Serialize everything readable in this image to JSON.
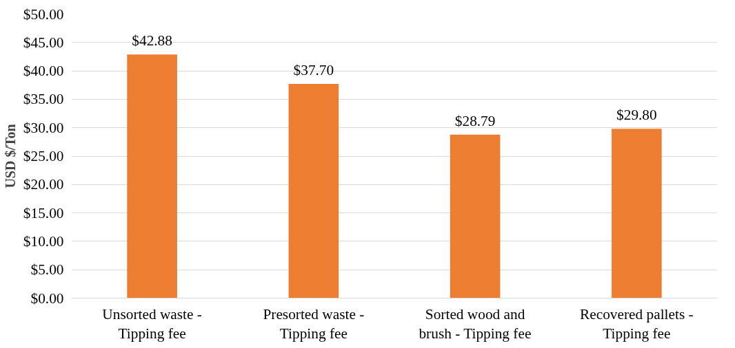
{
  "chart_data": {
    "type": "bar",
    "ylabel": "USD $/Ton",
    "categories": [
      "Unsorted waste - Tipping fee",
      "Presorted waste - Tipping fee",
      "Sorted wood and brush - Tipping fee",
      "Recovered pallets - Tipping fee"
    ],
    "values": [
      42.88,
      37.7,
      28.79,
      29.8
    ],
    "value_labels": [
      "$42.88",
      "$37.70",
      "$28.79",
      "$29.80"
    ],
    "color": "#ed7d31",
    "ylim": [
      0,
      50
    ],
    "yticks": [
      {
        "value": 0,
        "label": "$0.00"
      },
      {
        "value": 5,
        "label": "$5.00"
      },
      {
        "value": 10,
        "label": "$10.00"
      },
      {
        "value": 15,
        "label": "$15.00"
      },
      {
        "value": 20,
        "label": "$20.00"
      },
      {
        "value": 25,
        "label": "$25.00"
      },
      {
        "value": 30,
        "label": "$30.00"
      },
      {
        "value": 35,
        "label": "$35.00"
      },
      {
        "value": 40,
        "label": "$40.00"
      },
      {
        "value": 45,
        "label": "$45.00"
      },
      {
        "value": 50,
        "label": "$50.00"
      }
    ],
    "grid": "y"
  }
}
